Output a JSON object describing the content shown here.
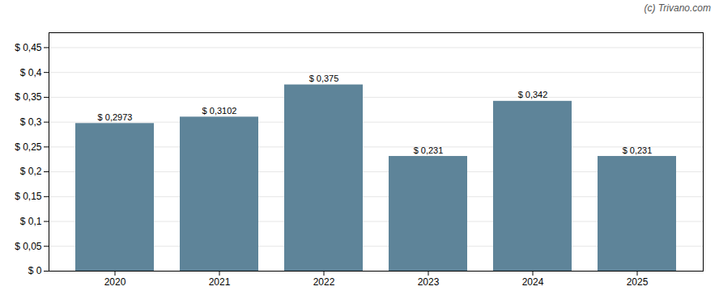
{
  "chart_data": {
    "type": "bar",
    "categories": [
      "2020",
      "2021",
      "2022",
      "2023",
      "2024",
      "2025"
    ],
    "values": [
      0.2973,
      0.3102,
      0.375,
      0.231,
      0.342,
      0.231
    ],
    "value_labels": [
      "$ 0,2973",
      "$ 0,3102",
      "$ 0,375",
      "$ 0,231",
      "$ 0,342",
      "$ 0,231"
    ],
    "data_labels": true,
    "color": "#5e8499",
    "ylim": [
      0,
      0.48
    ],
    "yticks": [
      {
        "value": 0,
        "label": "$ 0"
      },
      {
        "value": 0.05,
        "label": "$ 0,05"
      },
      {
        "value": 0.1,
        "label": "$ 0,1"
      },
      {
        "value": 0.15,
        "label": "$ 0,15"
      },
      {
        "value": 0.2,
        "label": "$ 0,2"
      },
      {
        "value": 0.25,
        "label": "$ 0,25"
      },
      {
        "value": 0.3,
        "label": "$ 0,3"
      },
      {
        "value": 0.35,
        "label": "$ 0,35"
      },
      {
        "value": 0.4,
        "label": "$ 0,4"
      },
      {
        "value": 0.45,
        "label": "$ 0,45"
      }
    ],
    "grid": true,
    "annotations": [
      "(c) Trivano.com"
    ]
  }
}
